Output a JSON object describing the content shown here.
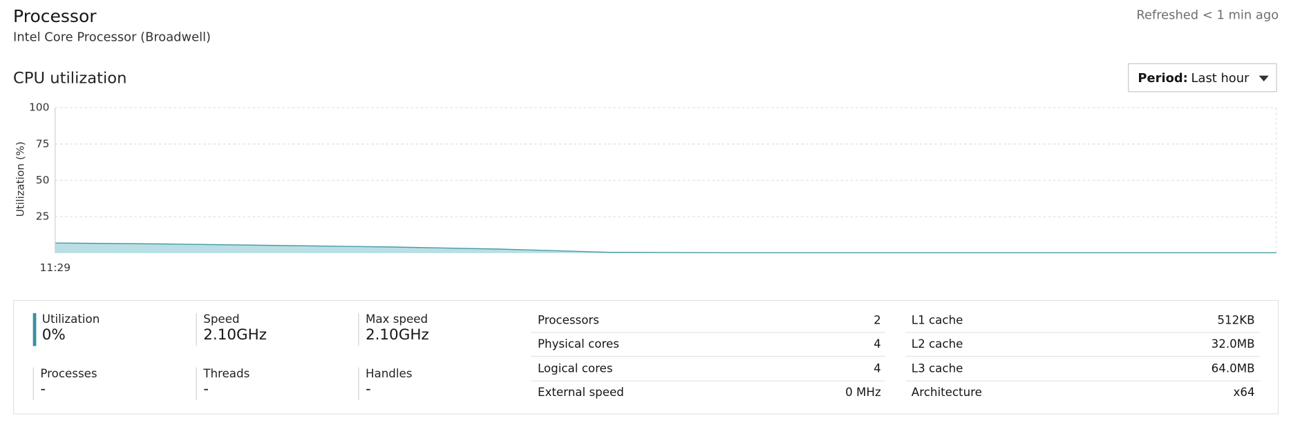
{
  "header": {
    "title": "Processor",
    "subtitle": "Intel Core Processor (Broadwell)",
    "refreshed": "Refreshed < 1 min ago"
  },
  "period": {
    "label": "Period:",
    "value": "Last hour"
  },
  "chart_data": {
    "type": "area",
    "title": "CPU utilization",
    "y_label": "Utilization (%)",
    "categories": [
      "11:29",
      null,
      null,
      null,
      null,
      null,
      null,
      null,
      null,
      null,
      null,
      null
    ],
    "values": [
      7,
      6.3,
      5.3,
      4.3,
      2.8,
      0.6,
      0.3,
      0.3,
      0.3,
      0.3,
      0.3,
      0.3
    ],
    "color": "#4a9aa6",
    "fill": "#b9dfe5",
    "ylim": [
      0,
      100
    ],
    "yticks": [
      25,
      50,
      75,
      100
    ],
    "grid": true
  },
  "stats": [
    {
      "label": "Utilization",
      "value": "0%"
    },
    {
      "label": "Speed",
      "value": "2.10GHz"
    },
    {
      "label": "Max speed",
      "value": "2.10GHz"
    },
    {
      "label": "Processes",
      "value": "-"
    },
    {
      "label": "Threads",
      "value": "-"
    },
    {
      "label": "Handles",
      "value": "-"
    }
  ],
  "specs": [
    [
      [
        "Processors",
        "2"
      ],
      [
        "Physical cores",
        "4"
      ],
      [
        "Logical cores",
        "4"
      ],
      [
        "External speed",
        "0 MHz"
      ]
    ],
    [
      [
        "L1 cache",
        "512KB"
      ],
      [
        "L2 cache",
        "32.0MB"
      ],
      [
        "L3 cache",
        "64.0MB"
      ],
      [
        "Architecture",
        "x64"
      ]
    ]
  ]
}
